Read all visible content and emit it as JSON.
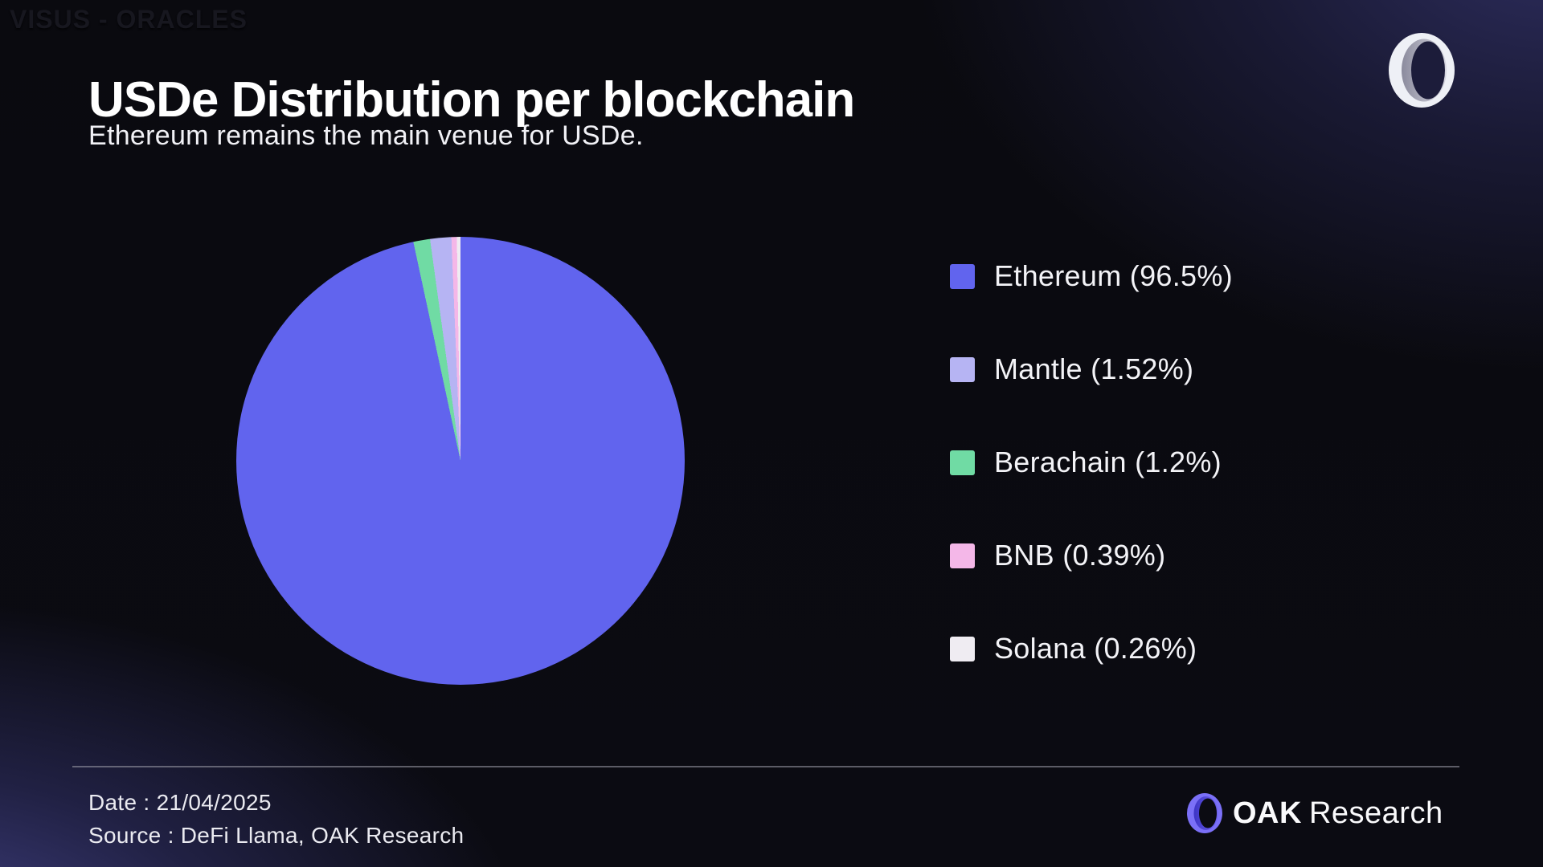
{
  "page": {
    "watermark": "VISUS - ORACLES",
    "title": "USDe Distribution per blockchain",
    "subtitle": "Ethereum remains the main venue for USDe."
  },
  "chart_data": {
    "type": "pie",
    "title": "USDe Distribution per blockchain",
    "subtitle": "Ethereum remains the main venue for USDe.",
    "unit": "percent",
    "slices": [
      {
        "label": "Ethereum",
        "value": 96.5,
        "legend_label": "Ethereum (96.5%)",
        "color": "#6164ee"
      },
      {
        "label": "Mantle",
        "value": 1.52,
        "legend_label": "Mantle (1.52%)",
        "color": "#b6b4f3"
      },
      {
        "label": "Berachain",
        "value": 1.2,
        "legend_label": "Berachain (1.2%)",
        "color": "#70dba4"
      },
      {
        "label": "BNB",
        "value": 0.39,
        "legend_label": "BNB (0.39%)",
        "color": "#f4b7e8"
      },
      {
        "label": "Solana",
        "value": 0.26,
        "legend_label": "Solana (0.26%)",
        "color": "#efecf2"
      }
    ],
    "draw_order": [
      "Ethereum",
      "Berachain",
      "Mantle",
      "BNB",
      "Solana"
    ],
    "start_angle_deg": 0,
    "direction": "clockwise",
    "legend_position": "right",
    "grid": false
  },
  "footer": {
    "date_label": "Date : 21/04/2025",
    "source_label": "Source : DeFi Llama, OAK Research",
    "brand_bold": "OAK",
    "brand_light": "Research"
  },
  "branding": {
    "top_right_icon": "oak-ring-icon",
    "footer_icon": "oak-ring-icon",
    "accent_blue": "#6164ee",
    "ring_white": "#eef0f6",
    "ring_blue": "#7b70f7"
  }
}
